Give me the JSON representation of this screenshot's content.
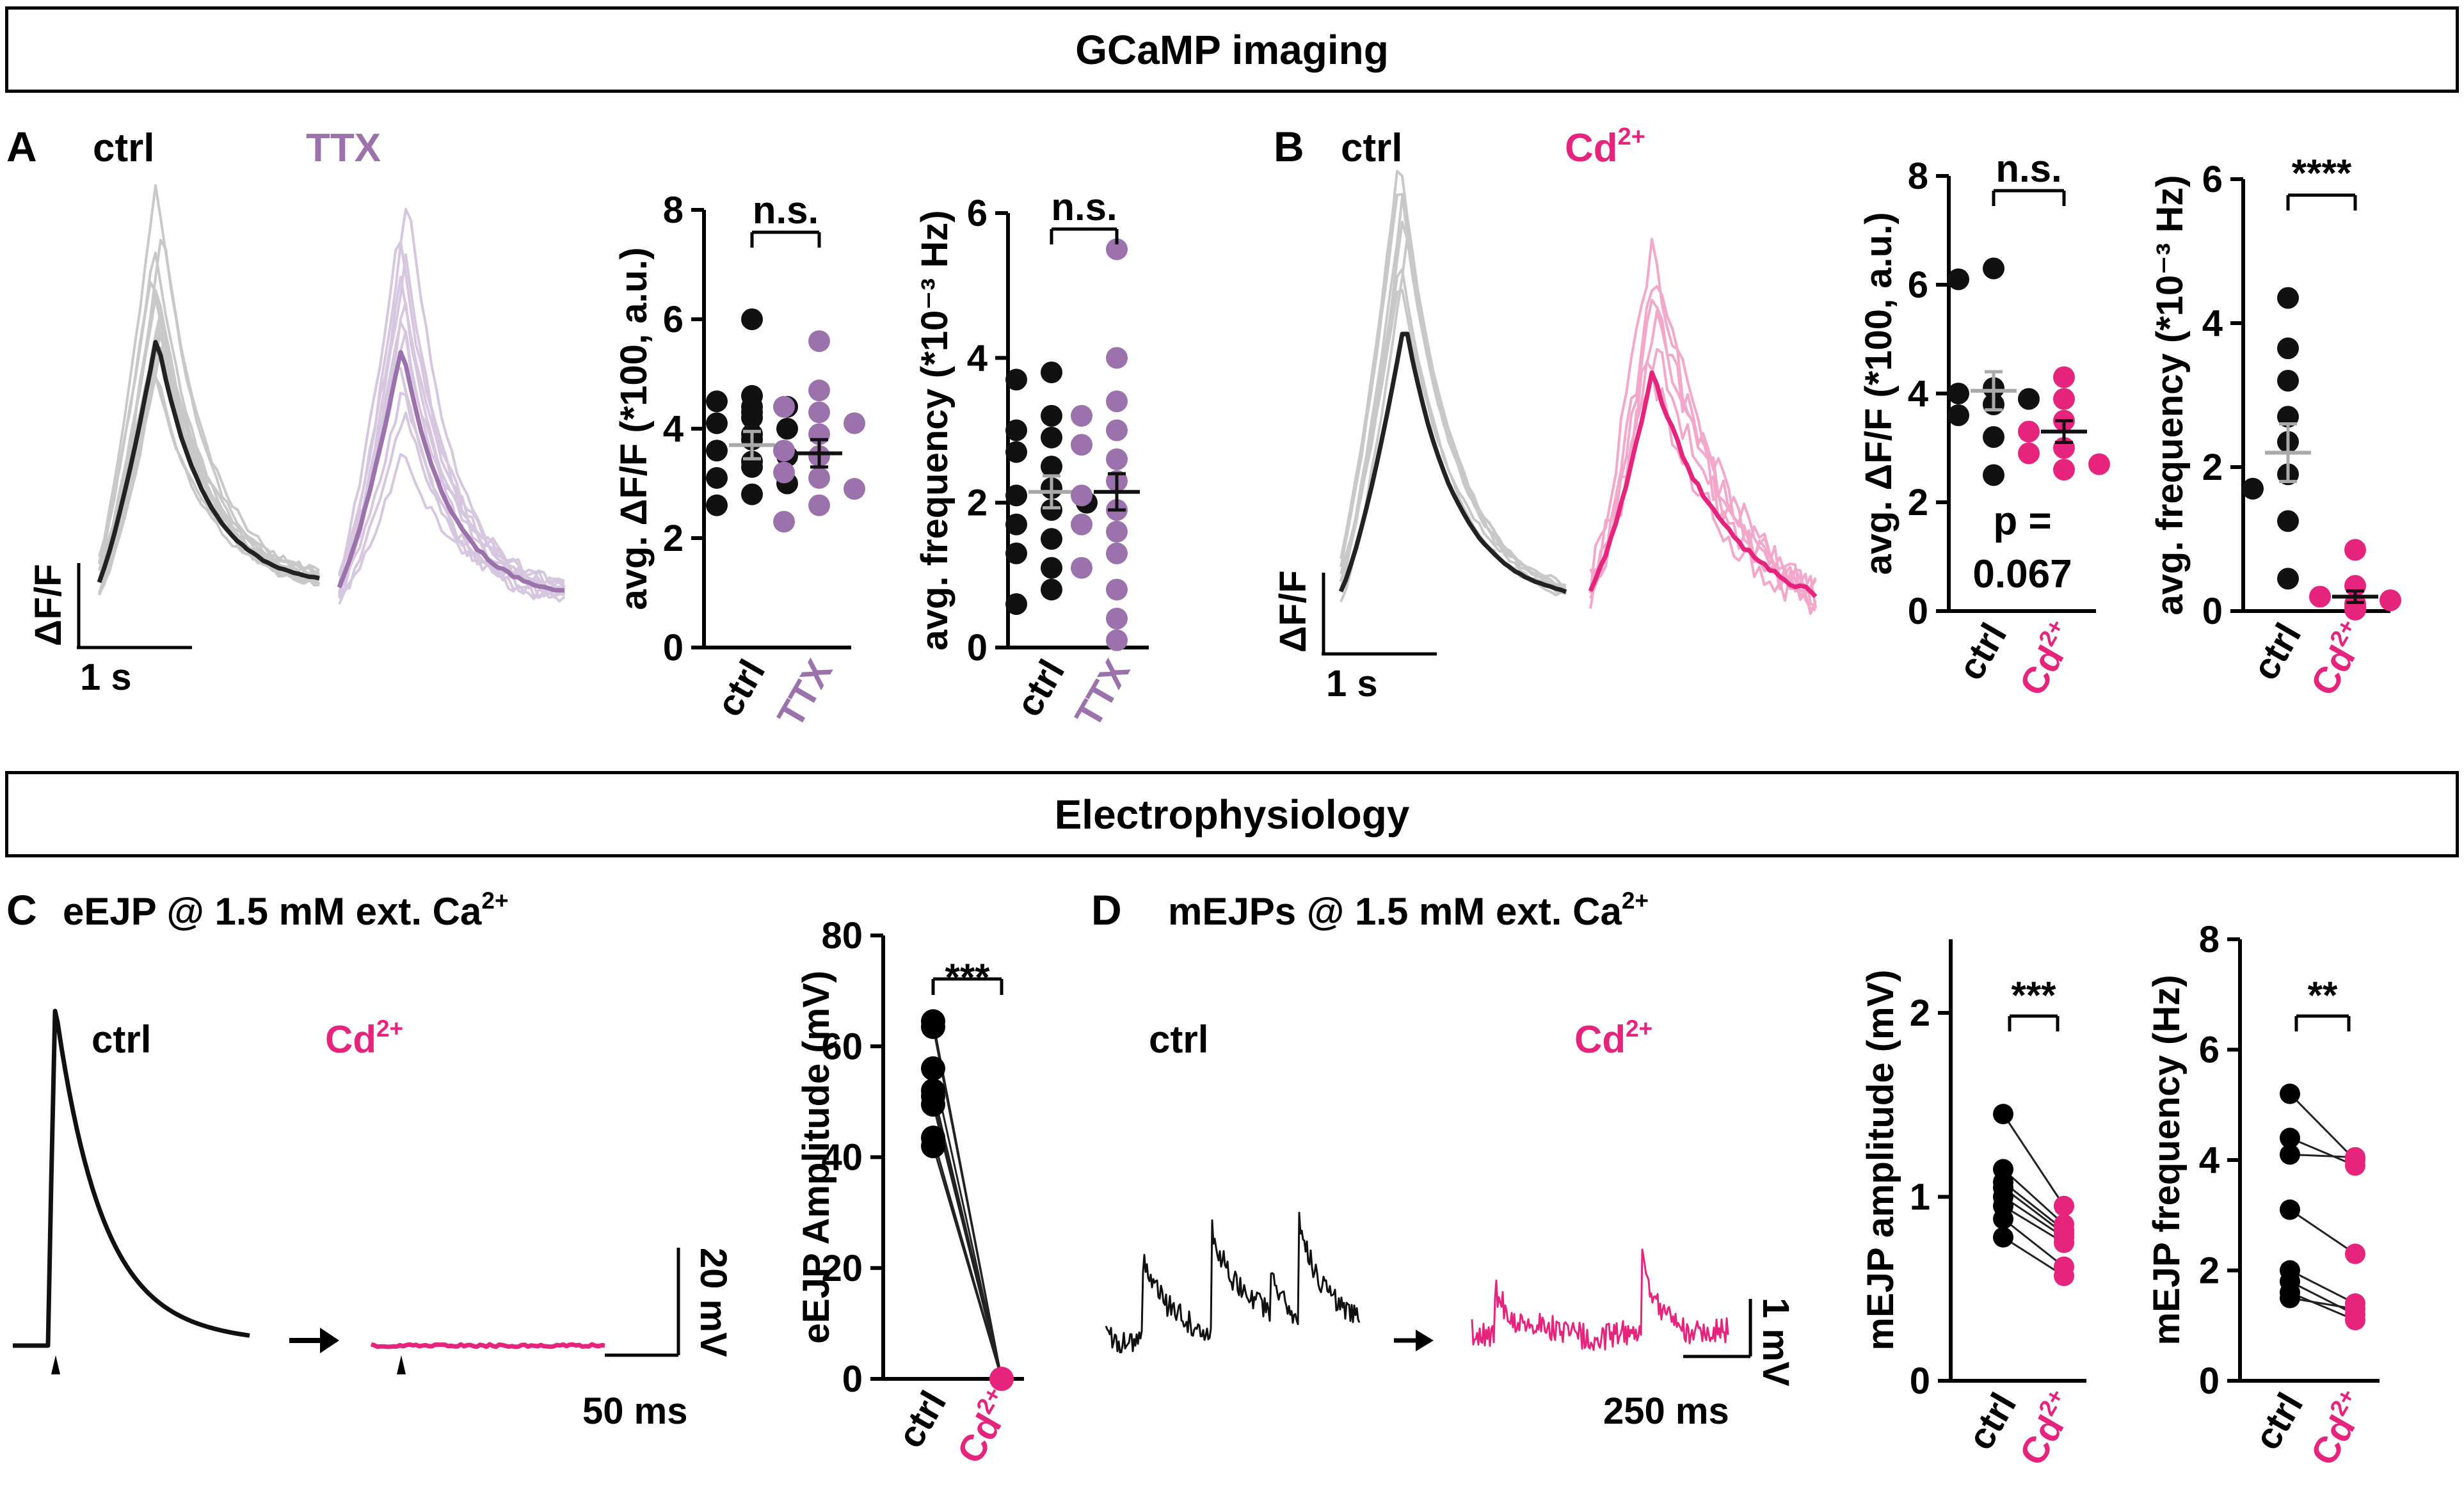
{
  "headers": {
    "gcamp": "GCaMP imaging",
    "ephys": "Electrophysiology"
  },
  "colors": {
    "black": "#111111",
    "grey": "#a9a9a9",
    "lightgrey": "#c8c8c8",
    "purple": "#9b72ab",
    "lightpurple": "#d6c6df",
    "magenta": "#e6237d",
    "lightmagenta": "#f3a8cb"
  },
  "panelA": {
    "letter": "A",
    "ctrl_label": "ctrl",
    "treat_label": "TTX",
    "scalebar_y": "ΔF/F",
    "scalebar_x": "1 s",
    "chart_data": [
      {
        "type": "scatter",
        "ylabel": "avg. ΔF/F (*100, a.u.)",
        "ylim": [
          0,
          8
        ],
        "yticks": [
          "0",
          "2",
          "4",
          "6",
          "8"
        ],
        "categories": [
          "ctrl",
          "TTX"
        ],
        "significance": "n.s.",
        "series": [
          {
            "name": "ctrl",
            "mean": 3.7,
            "sem": 0.25,
            "values": [
              6.0,
              4.6,
              4.5,
              4.4,
              4.4,
              4.3,
              4.2,
              4.1,
              4.0,
              3.9,
              3.8,
              3.6,
              3.5,
              3.4,
              3.3,
              3.1,
              3.0,
              2.8,
              2.6
            ]
          },
          {
            "name": "TTX",
            "mean": 3.55,
            "sem": 0.25,
            "values": [
              5.6,
              4.7,
              4.4,
              4.3,
              4.1,
              3.9,
              3.6,
              3.5,
              3.2,
              3.1,
              2.9,
              2.6,
              2.3
            ]
          }
        ]
      },
      {
        "type": "scatter",
        "ylabel": "avg. frequency (*10⁻³ Hz)",
        "ylim": [
          0,
          6
        ],
        "yticks": [
          "0",
          "2",
          "4",
          "6"
        ],
        "categories": [
          "ctrl",
          "TTX"
        ],
        "significance": "n.s.",
        "series": [
          {
            "name": "ctrl",
            "mean": 2.15,
            "sem": 0.22,
            "values": [
              3.8,
              3.7,
              3.2,
              3.0,
              2.9,
              2.7,
              2.5,
              2.2,
              2.1,
              2.0,
              1.9,
              1.7,
              1.5,
              1.3,
              1.1,
              0.8,
              0.6
            ]
          },
          {
            "name": "TTX",
            "mean": 2.15,
            "sem": 0.25,
            "values": [
              5.5,
              4.0,
              3.4,
              3.2,
              3.0,
              2.8,
              2.6,
              2.3,
              2.1,
              1.9,
              1.7,
              1.6,
              1.3,
              1.1,
              0.8,
              0.4,
              0.1
            ]
          }
        ]
      }
    ]
  },
  "panelB": {
    "letter": "B",
    "ctrl_label": "ctrl",
    "treat_label": "Cd",
    "treat_sup": "2+",
    "scalebar_y": "ΔF/F",
    "scalebar_x": "1 s",
    "chart_data": [
      {
        "type": "scatter",
        "ylabel": "avg. ΔF/F (*100, a.u.)",
        "ylim": [
          0,
          8
        ],
        "yticks": [
          "0",
          "2",
          "4",
          "6",
          "8"
        ],
        "categories": [
          "ctrl",
          "Cd2+"
        ],
        "significance": "n.s.",
        "annotation_line1": "p =",
        "annotation_line2": "0.067",
        "series": [
          {
            "name": "ctrl",
            "mean": 4.05,
            "sem": 0.35,
            "values": [
              6.3,
              6.1,
              4.1,
              4.0,
              3.9,
              3.8,
              3.6,
              3.2,
              2.5
            ]
          },
          {
            "name": "Cd2+",
            "mean": 3.3,
            "sem": 0.2,
            "values": [
              4.3,
              3.9,
              3.5,
              3.3,
              3.0,
              2.9,
              2.7,
              2.6
            ]
          }
        ]
      },
      {
        "type": "scatter",
        "ylabel": "avg. frequency (*10⁻³ Hz)",
        "ylim": [
          0,
          6
        ],
        "yticks": [
          "0",
          "2",
          "4",
          "6"
        ],
        "categories": [
          "ctrl",
          "Cd2+"
        ],
        "significance": "****",
        "series": [
          {
            "name": "ctrl",
            "mean": 2.2,
            "sem": 0.4,
            "values": [
              4.35,
              3.65,
              3.2,
              2.7,
              2.35,
              1.9,
              1.7,
              1.25,
              0.45
            ]
          },
          {
            "name": "Cd2+",
            "mean": 0.2,
            "sem": 0.08,
            "values": [
              0.85,
              0.35,
              0.2,
              0.15,
              0.1,
              0.05,
              0.02
            ]
          }
        ]
      }
    ]
  },
  "panelC": {
    "letter": "C",
    "title": "eEJP @ 1.5 mM ext. Ca",
    "title_sup": "2+",
    "ctrl_label": "ctrl",
    "treat_label": "Cd",
    "treat_sup": "2+",
    "scalebar_y": "20 mV",
    "scalebar_x": "50 ms",
    "chart_data": {
      "type": "line",
      "ylabel": "eEJP Amplitude (mV)",
      "ylim": [
        0,
        80
      ],
      "yticks": [
        "0",
        "20",
        "40",
        "60",
        "80"
      ],
      "categories": [
        "ctrl",
        "Cd2+"
      ],
      "significance": "***",
      "pairs": [
        [
          64.5,
          0
        ],
        [
          63.5,
          0
        ],
        [
          56,
          0
        ],
        [
          52,
          0
        ],
        [
          51,
          0
        ],
        [
          49.5,
          0
        ],
        [
          43.5,
          0
        ],
        [
          42,
          0
        ]
      ]
    }
  },
  "panelD": {
    "letter": "D",
    "title": "mEJPs @ 1.5 mM ext. Ca",
    "title_sup": "2+",
    "ctrl_label": "ctrl",
    "treat_label": "Cd",
    "treat_sup": "2+",
    "scalebar_y": "1 mV",
    "scalebar_x": "250 ms",
    "chart_data": [
      {
        "type": "line",
        "ylabel": "mEJP amplitude (mV)",
        "ylim": [
          0,
          2.4
        ],
        "yticks": [
          "0",
          "1",
          "2"
        ],
        "categories": [
          "ctrl",
          "Cd2+"
        ],
        "significance": "***",
        "pairs": [
          [
            1.45,
            0.95
          ],
          [
            1.15,
            0.85
          ],
          [
            1.08,
            0.82
          ],
          [
            1.05,
            0.8
          ],
          [
            1.0,
            0.78
          ],
          [
            0.95,
            0.75
          ],
          [
            0.88,
            0.62
          ],
          [
            0.78,
            0.57
          ]
        ]
      },
      {
        "type": "line",
        "ylabel": "mEJP frequency (Hz)",
        "ylim": [
          0,
          8
        ],
        "yticks": [
          "0",
          "2",
          "4",
          "6",
          "8"
        ],
        "categories": [
          "ctrl",
          "Cd2+"
        ],
        "significance": "**",
        "pairs": [
          [
            5.2,
            4.0
          ],
          [
            4.4,
            3.9
          ],
          [
            4.1,
            4.05
          ],
          [
            3.1,
            2.3
          ],
          [
            2.0,
            1.4
          ],
          [
            1.8,
            1.2
          ],
          [
            1.6,
            1.1
          ],
          [
            1.5,
            1.3
          ]
        ]
      }
    ]
  }
}
